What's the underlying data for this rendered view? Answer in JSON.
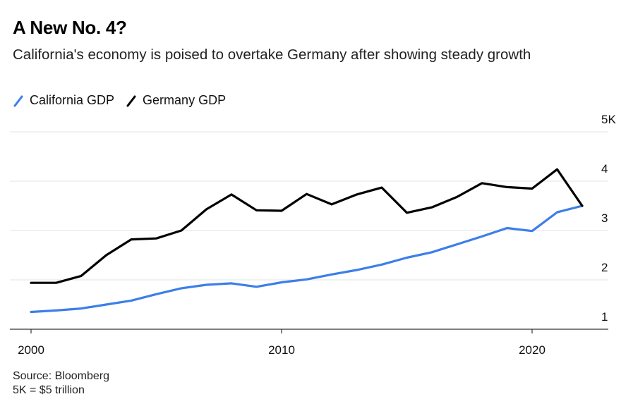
{
  "title": "A New No. 4?",
  "subtitle": "California's economy is poised to overtake Germany after showing steady growth",
  "legend": [
    {
      "label": "California GDP",
      "color": "#3d7ee8"
    },
    {
      "label": "Germany GDP",
      "color": "#000000"
    }
  ],
  "footer": {
    "source": "Source: Bloomberg",
    "note": "5K = $5 trillion"
  },
  "chart_data": {
    "type": "line",
    "title": "A New No. 4?",
    "xlabel": "",
    "ylabel": "",
    "xlim": [
      2000,
      2023
    ],
    "ylim": [
      1,
      5
    ],
    "x_ticks": [
      2000,
      2010,
      2020
    ],
    "y_ticks": [
      1,
      2,
      3,
      4,
      5
    ],
    "y_tick_labels": [
      "1",
      "2",
      "3",
      "4",
      "5K"
    ],
    "grid": true,
    "legend_position": "top-left",
    "x": [
      2000,
      2001,
      2002,
      2003,
      2004,
      2005,
      2006,
      2007,
      2008,
      2009,
      2010,
      2011,
      2012,
      2013,
      2014,
      2015,
      2016,
      2017,
      2018,
      2019,
      2020,
      2021,
      2022
    ],
    "series": [
      {
        "name": "California GDP",
        "color": "#3d7ee8",
        "values": [
          1.35,
          1.38,
          1.42,
          1.5,
          1.58,
          1.71,
          1.83,
          1.9,
          1.93,
          1.86,
          1.95,
          2.01,
          2.11,
          2.2,
          2.31,
          2.45,
          2.56,
          2.72,
          2.88,
          3.05,
          2.99,
          3.37,
          3.5
        ]
      },
      {
        "name": "Germany GDP",
        "color": "#000000",
        "values": [
          1.94,
          1.94,
          2.08,
          2.5,
          2.82,
          2.84,
          3.0,
          3.43,
          3.73,
          3.41,
          3.4,
          3.74,
          3.53,
          3.73,
          3.87,
          3.36,
          3.47,
          3.68,
          3.96,
          3.88,
          3.85,
          4.24,
          3.5
        ]
      }
    ]
  }
}
